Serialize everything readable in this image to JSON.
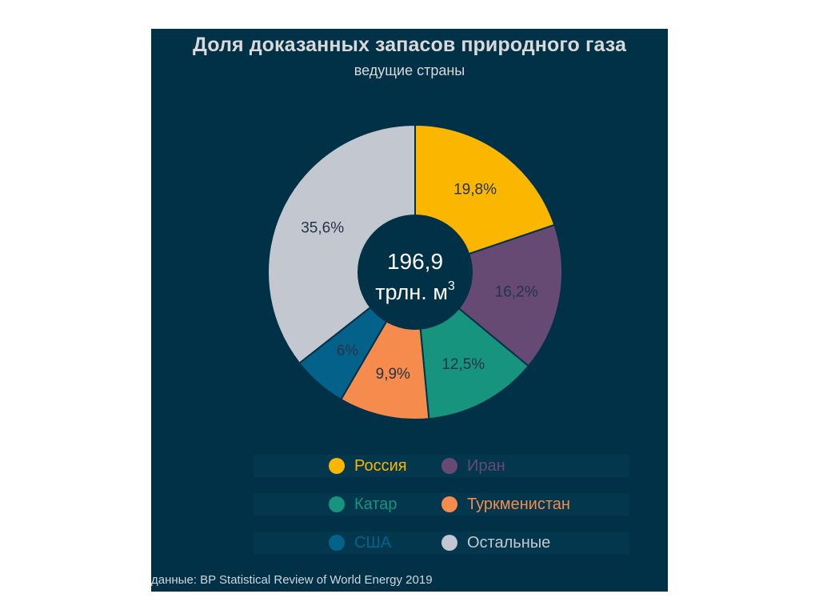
{
  "chart_data": {
    "type": "pie",
    "title": "Доля доказанных запасов природного газа",
    "subtitle": "ведущие страны",
    "center_label": {
      "value": "196,9",
      "unit": "трлн. м",
      "unit_sup": "3"
    },
    "slices": [
      {
        "name": "Россия",
        "value": 19.8,
        "label": "19,8%",
        "color": "#fbb600"
      },
      {
        "name": "Иран",
        "value": 16.2,
        "label": "16,2%",
        "color": "#674a74"
      },
      {
        "name": "Катар",
        "value": 12.5,
        "label": "12,5%",
        "color": "#17947e"
      },
      {
        "name": "Туркменистан",
        "value": 9.9,
        "label": "9,9%",
        "color": "#f58b4c"
      },
      {
        "name": "США",
        "value": 6,
        "label": "6%",
        "color": "#04628a"
      },
      {
        "name": "Остальные",
        "value": 35.6,
        "label": "35,6%",
        "color": "#c3c7cf"
      }
    ],
    "legend": [
      "Россия",
      "Иран",
      "Катар",
      "Туркменистан",
      "США",
      "Остальные"
    ],
    "legend_placement": "bottom"
  },
  "colors": {
    "background": "#013147",
    "center": "#013147",
    "title_text": "#d9d9d9"
  },
  "source": "данные: BP Statistical Review of World Energy 2019"
}
